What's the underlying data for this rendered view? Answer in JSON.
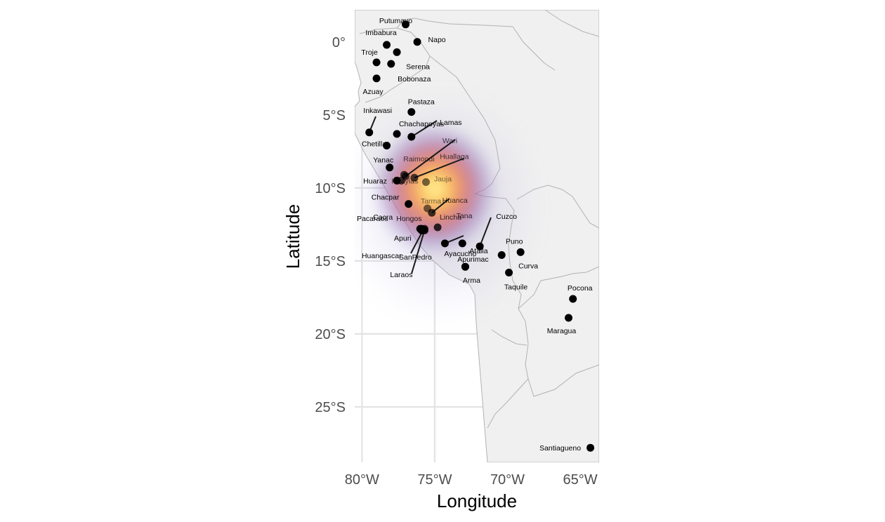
{
  "map": {
    "x_label": "Longitude",
    "y_label": "Latitude",
    "extent": {
      "lon": [
        -80.5,
        -63.7
      ],
      "lat": [
        2.2,
        -28.8
      ]
    },
    "x_ticks": [
      {
        "value": -80,
        "label": "80°W"
      },
      {
        "value": -75,
        "label": "75°W"
      },
      {
        "value": -70,
        "label": "70°W"
      },
      {
        "value": -65,
        "label": "65°W"
      }
    ],
    "y_ticks": [
      {
        "value": 0,
        "label": "0°"
      },
      {
        "value": -5,
        "label": "5°S"
      },
      {
        "value": -10,
        "label": "10°S"
      },
      {
        "value": -15,
        "label": "15°S"
      },
      {
        "value": -20,
        "label": "20°S"
      },
      {
        "value": -25,
        "label": "25°S"
      }
    ],
    "colors": {
      "panel": "#ebebeb",
      "land": "#f0f0f0",
      "grid": "#e3e3e3",
      "border": "#b2b2b2",
      "point": "#000000"
    },
    "density_hotspot": {
      "lon": -75.0,
      "lat": -10.3
    },
    "sites": [
      {
        "name": "Putumayo",
        "lon": -77.0,
        "lat": 1.2
      },
      {
        "name": "Imbabura",
        "lon": -78.3,
        "lat": -0.2
      },
      {
        "name": "Napo",
        "lon": -76.2,
        "lat": 0.0
      },
      {
        "name": "Troje",
        "lon": -79.0,
        "lat": -1.4
      },
      {
        "name": "Serena",
        "lon": -77.6,
        "lat": -0.7
      },
      {
        "name": "Bobonaza",
        "lon": -78.0,
        "lat": -1.5
      },
      {
        "name": "Azuay",
        "lon": -79.0,
        "lat": -2.5
      },
      {
        "name": "Pastaza",
        "lon": -76.6,
        "lat": -4.8
      },
      {
        "name": "Inkawasi",
        "lon": -79.5,
        "lat": -6.2
      },
      {
        "name": "Chachapoyas",
        "lon": -77.6,
        "lat": -6.3
      },
      {
        "name": "Lamas",
        "lon": -76.6,
        "lat": -6.5
      },
      {
        "name": "Chetilla",
        "lon": -78.3,
        "lat": -7.1
      },
      {
        "name": "Wari",
        "lon": -77.0,
        "lat": -9.2
      },
      {
        "name": "Yanac",
        "lon": -78.1,
        "lat": -8.6
      },
      {
        "name": "Raimondi",
        "lon": -77.1,
        "lat": -9.1
      },
      {
        "name": "Huallaga",
        "lon": -76.4,
        "lat": -9.3
      },
      {
        "name": "Huaraz",
        "lon": -77.6,
        "lat": -9.5
      },
      {
        "name": "Huaylas",
        "lon": -77.3,
        "lat": -9.5
      },
      {
        "name": "Jauja",
        "lon": -75.6,
        "lat": -9.6
      },
      {
        "name": "Chacpar",
        "lon": -76.8,
        "lat": -11.1
      },
      {
        "name": "Tarma",
        "lon": -75.5,
        "lat": -11.4
      },
      {
        "name": "Huanca",
        "lon": -75.2,
        "lat": -11.7
      },
      {
        "name": "Pacaraos",
        "lon": -75.9,
        "lat": -12.9
      },
      {
        "name": "Cacra",
        "lon": -76.0,
        "lat": -12.8
      },
      {
        "name": "Hongos",
        "lon": -75.8,
        "lat": -12.9
      },
      {
        "name": "Lincha",
        "lon": -75.7,
        "lat": -12.8
      },
      {
        "name": "Tana",
        "lon": -74.8,
        "lat": -12.7
      },
      {
        "name": "Cuzco",
        "lon": -71.9,
        "lat": -14.0
      },
      {
        "name": "Apuri",
        "lon": -75.9,
        "lat": -12.9
      },
      {
        "name": "Atalla",
        "lon": -74.3,
        "lat": -13.8
      },
      {
        "name": "Huangascar",
        "lon": -75.9,
        "lat": -12.8
      },
      {
        "name": "SanPedro",
        "lon": -75.8,
        "lat": -12.9
      },
      {
        "name": "Ayacucho",
        "lon": -73.1,
        "lat": -13.8
      },
      {
        "name": "Apurimac",
        "lon": -72.9,
        "lat": -15.4
      },
      {
        "name": "Puno",
        "lon": -70.4,
        "lat": -14.6
      },
      {
        "name": "Curva",
        "lon": -69.1,
        "lat": -14.4
      },
      {
        "name": "Laraos",
        "lon": -75.7,
        "lat": -12.9
      },
      {
        "name": "Arma",
        "lon": -72.9,
        "lat": -15.4
      },
      {
        "name": "Taquile",
        "lon": -69.9,
        "lat": -15.8
      },
      {
        "name": "Pocona",
        "lon": -65.5,
        "lat": -17.6
      },
      {
        "name": "Maragua",
        "lon": -65.8,
        "lat": -18.9
      },
      {
        "name": "Santiagueno",
        "lon": -64.3,
        "lat": -27.8
      }
    ]
  }
}
